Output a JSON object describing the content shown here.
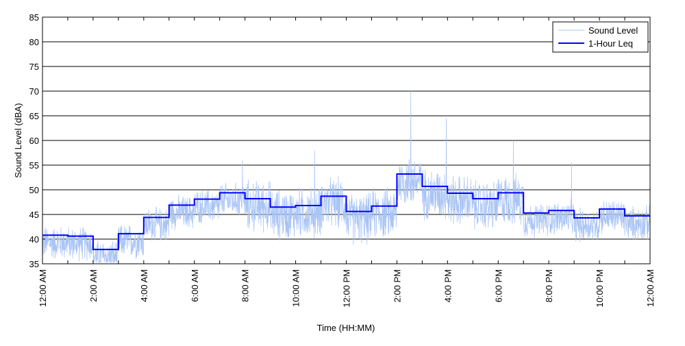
{
  "chart_data": {
    "type": "line",
    "title": "",
    "xlabel": "Time (HH:MM)",
    "ylabel": "Sound Level (dBA)",
    "ylim": [
      35,
      85
    ],
    "yticks": [
      35,
      40,
      45,
      50,
      55,
      60,
      65,
      70,
      75,
      80,
      85
    ],
    "xlim_hours": [
      0,
      24
    ],
    "xtick_labels": [
      "12:00 AM",
      "2:00 AM",
      "4:00 AM",
      "6:00 AM",
      "8:00 AM",
      "10:00 AM",
      "12:00 PM",
      "2:00 PM",
      "4:00 PM",
      "6:00 PM",
      "8:00 PM",
      "10:00 PM",
      "12:00 AM"
    ],
    "grid": "horizontal",
    "legend": {
      "placement": "top-right",
      "entries": [
        "Sound Level",
        "1-Hour Leq"
      ]
    },
    "colors": {
      "sound_level": "#a9c4f5",
      "leq": "#0000ff"
    },
    "series": [
      {
        "name": "1-Hour Leq",
        "type": "step",
        "hours": [
          0,
          1,
          2,
          3,
          4,
          5,
          6,
          7,
          8,
          9,
          10,
          11,
          12,
          13,
          14,
          15,
          16,
          17,
          18,
          19,
          20,
          21,
          22,
          23
        ],
        "values": [
          40.8,
          40.6,
          37.9,
          41.1,
          44.4,
          46.9,
          48.1,
          49.4,
          48.2,
          46.5,
          46.8,
          48.7,
          45.6,
          46.7,
          53.2,
          50.7,
          49.3,
          48.2,
          49.4,
          45.3,
          45.8,
          44.3,
          46.1,
          44.7
        ]
      },
      {
        "name": "Sound Level",
        "type": "line",
        "note_spikes_hours": [
          10.75,
          14.55,
          15.95,
          18.6,
          20.9,
          7.9
        ],
        "spike_values": [
          58,
          70,
          64.5,
          60,
          55.5,
          56
        ]
      }
    ]
  }
}
